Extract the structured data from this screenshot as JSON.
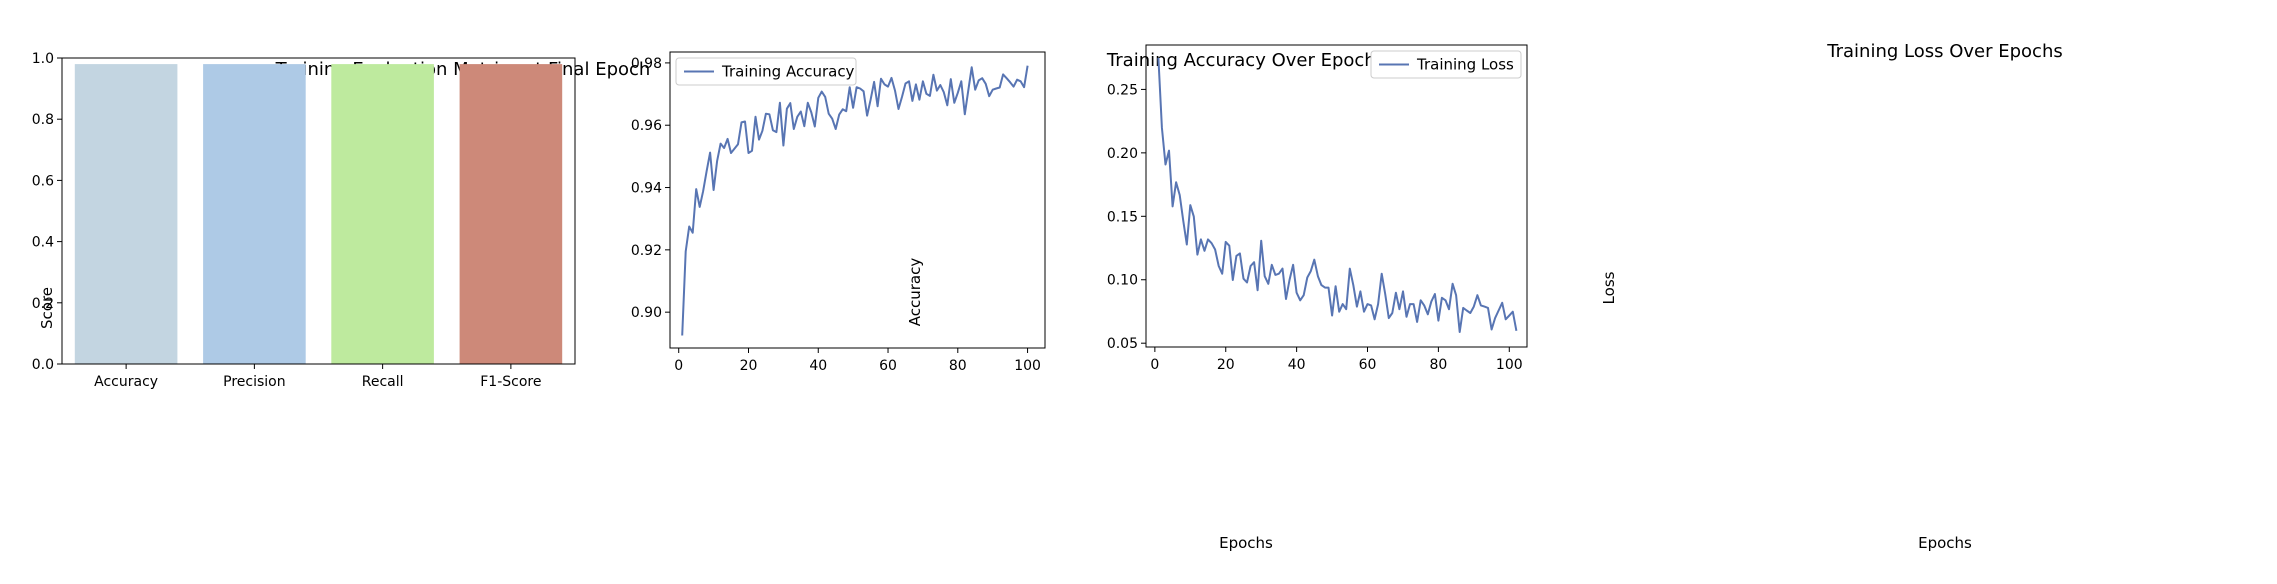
{
  "chart_data": [
    {
      "type": "bar",
      "title": "Training Evaluation Metrics at Final Epoch",
      "xlabel": "",
      "ylabel": "Score",
      "ylim": [
        0,
        1.0
      ],
      "yticks": [
        0.0,
        0.2,
        0.4,
        0.6,
        0.8,
        1.0
      ],
      "ytick_labels": [
        "0.0",
        "0.2",
        "0.4",
        "0.6",
        "0.8",
        "1.0"
      ],
      "categories": [
        "Accuracy",
        "Precision",
        "Recall",
        "F1-Score"
      ],
      "values": [
        0.98,
        0.98,
        0.98,
        0.98
      ],
      "colors": [
        "#c3d5e1",
        "#aecae6",
        "#beea9e",
        "#cd8979"
      ],
      "grid": false
    },
    {
      "type": "line",
      "title": "Training Accuracy Over Epochs",
      "xlabel": "Epochs",
      "ylabel": "Accuracy",
      "xlim": [
        -2.5,
        105
      ],
      "ylim": [
        0.8885,
        0.9835
      ],
      "xticks": [
        0,
        20,
        40,
        60,
        80,
        100
      ],
      "xtick_labels": [
        "0",
        "20",
        "40",
        "60",
        "80",
        "100"
      ],
      "yticks": [
        0.9,
        0.92,
        0.94,
        0.96,
        0.98
      ],
      "ytick_labels": [
        "0.90",
        "0.92",
        "0.94",
        "0.96",
        "0.98"
      ],
      "legend": "upper-left",
      "grid": false,
      "series": [
        {
          "name": "Training Accuracy",
          "color": "#5875b3",
          "x_start": 1,
          "values": [
            0.8925,
            0.9195,
            0.9275,
            0.9255,
            0.9395,
            0.9338,
            0.9388,
            0.9452,
            0.9512,
            0.9392,
            0.9485,
            0.9541,
            0.9527,
            0.9556,
            0.9511,
            0.9525,
            0.9539,
            0.9609,
            0.9612,
            0.9511,
            0.9518,
            0.9627,
            0.9554,
            0.9582,
            0.9637,
            0.9635,
            0.9584,
            0.9578,
            0.9672,
            0.9535,
            0.9653,
            0.9671,
            0.9588,
            0.9627,
            0.9644,
            0.9597,
            0.9672,
            0.9641,
            0.9596,
            0.9688,
            0.9708,
            0.9691,
            0.9637,
            0.9621,
            0.9588,
            0.9634,
            0.9651,
            0.9645,
            0.9722,
            0.9656,
            0.9722,
            0.9718,
            0.9709,
            0.9631,
            0.9682,
            0.9739,
            0.9661,
            0.9749,
            0.9731,
            0.9724,
            0.9752,
            0.9711,
            0.9652,
            0.9691,
            0.9734,
            0.9741,
            0.9678,
            0.9731,
            0.9682,
            0.9741,
            0.9701,
            0.9694,
            0.9762,
            0.9711,
            0.9729,
            0.9706,
            0.9664,
            0.9748,
            0.9672,
            0.9704,
            0.9741,
            0.9635,
            0.9712,
            0.9786,
            0.9714,
            0.9744,
            0.9751,
            0.9733,
            0.9693,
            0.9714,
            0.9718,
            0.9721,
            0.9763,
            0.9751,
            0.9738,
            0.9724,
            0.9746,
            0.9741,
            0.9722,
            0.9791
          ]
        }
      ]
    },
    {
      "type": "line",
      "title": "Training Loss Over Epochs",
      "xlabel": "Epochs",
      "ylabel": "Loss",
      "xlim": [
        -2.5,
        105
      ],
      "ylim": [
        0.047,
        0.285
      ],
      "xticks": [
        0,
        20,
        40,
        60,
        80,
        100
      ],
      "xtick_labels": [
        "0",
        "20",
        "40",
        "60",
        "80",
        "100"
      ],
      "yticks": [
        0.05,
        0.1,
        0.15,
        0.2,
        0.25
      ],
      "ytick_labels": [
        "0.05",
        "0.10",
        "0.15",
        "0.20",
        "0.25"
      ],
      "legend": "upper-right",
      "grid": false,
      "series": [
        {
          "name": "Training Loss",
          "color": "#5875b3",
          "x_start": 1,
          "values": [
            0.2748,
            0.2198,
            0.1908,
            0.2018,
            0.1578,
            0.1768,
            0.1668,
            0.1468,
            0.1278,
            0.1588,
            0.1498,
            0.1198,
            0.1318,
            0.1228,
            0.1318,
            0.1288,
            0.1238,
            0.1108,
            0.1048,
            0.1298,
            0.1268,
            0.0998,
            0.1188,
            0.1208,
            0.1008,
            0.0978,
            0.1108,
            0.1138,
            0.0918,
            0.1308,
            0.1028,
            0.0968,
            0.1118,
            0.1038,
            0.1048,
            0.1088,
            0.0848,
            0.0998,
            0.1118,
            0.0898,
            0.0838,
            0.0878,
            0.1018,
            0.1068,
            0.1158,
            0.1028,
            0.0958,
            0.0938,
            0.0938,
            0.0718,
            0.0948,
            0.0748,
            0.0808,
            0.0768,
            0.1088,
            0.0958,
            0.0788,
            0.0908,
            0.0748,
            0.0808,
            0.0798,
            0.0688,
            0.0808,
            0.1048,
            0.0888,
            0.0698,
            0.0738,
            0.0898,
            0.0768,
            0.0908,
            0.0708,
            0.0808,
            0.0808,
            0.0668,
            0.0838,
            0.0798,
            0.0728,
            0.0828,
            0.0888,
            0.0678,
            0.0858,
            0.0838,
            0.0768,
            0.0968,
            0.0878,
            0.0588,
            0.0778,
            0.0758,
            0.0738,
            0.0788,
            0.0878,
            0.0798,
            0.0788,
            0.0778,
            0.0608,
            0.0698,
            0.0758,
            0.0818,
            0.0688,
            0.0718,
            0.0748,
            0.0598
          ]
        }
      ]
    }
  ]
}
